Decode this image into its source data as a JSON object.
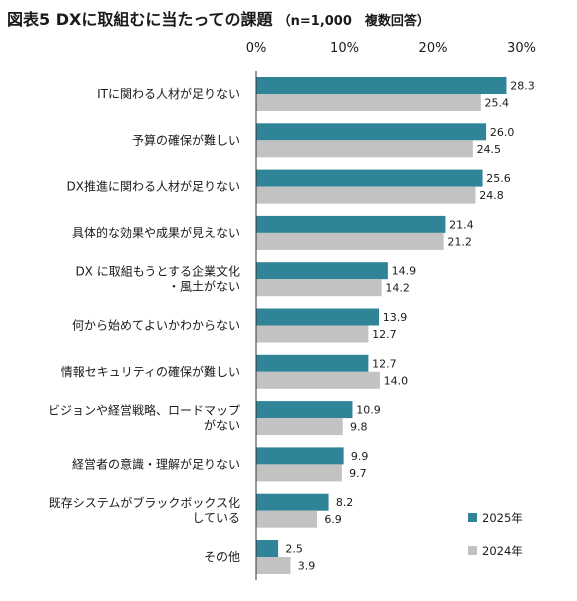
{
  "title": {
    "main": "図表5 DXに取組むに当たっての課題",
    "sub": "（n=1,000　複数回答）"
  },
  "colors": {
    "s2025": "#2f8497",
    "s2024": "#c2c2c2",
    "axis": "#333333"
  },
  "chart_data": {
    "type": "bar",
    "orientation": "horizontal",
    "title": "図表5 DXに取組むに当たっての課題",
    "subtitle": "（n=1,000　複数回答）",
    "xlim": [
      0,
      30
    ],
    "ticks": [
      "0%",
      "10%",
      "20%",
      "30%"
    ],
    "grid": false,
    "legend_position": "bottom-right",
    "categories": [
      [
        "ITに関わる人材が足りない"
      ],
      [
        "予算の確保が難しい"
      ],
      [
        "DX推進に関わる人材が足りない"
      ],
      [
        "具体的な効果や成果が見えない"
      ],
      [
        "DX に取組もうとする企業文化",
        "・風土がない"
      ],
      [
        "何から始めてよいかわからない"
      ],
      [
        "情報セキュリティの確保が難しい"
      ],
      [
        "ビジョンや経営戦略、ロードマップ",
        "がない"
      ],
      [
        "経営者の意識・理解が足りない"
      ],
      [
        "既存システムがブラックボックス化",
        "している"
      ],
      [
        "その他"
      ]
    ],
    "series": [
      {
        "name": "2025年",
        "values": [
          28.3,
          26.0,
          25.6,
          21.4,
          14.9,
          13.9,
          12.7,
          10.9,
          9.9,
          8.2,
          2.5
        ]
      },
      {
        "name": "2024年",
        "values": [
          25.4,
          24.5,
          24.8,
          21.2,
          14.2,
          12.7,
          14.0,
          9.8,
          9.7,
          6.9,
          3.9
        ]
      }
    ]
  }
}
